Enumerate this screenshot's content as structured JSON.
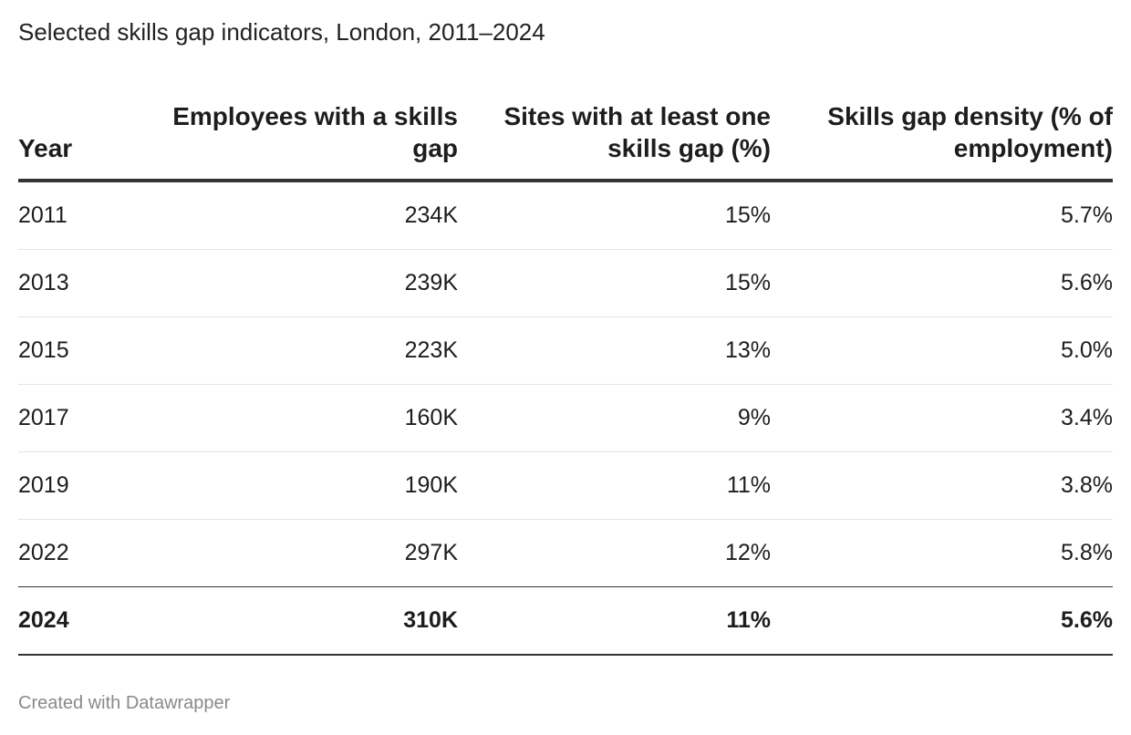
{
  "chart_data": {
    "type": "table",
    "title": "Selected skills gap indicators, London, 2011–2024",
    "columns": [
      "Year",
      "Employees with a skills gap",
      "Sites with at least one skills gap (%)",
      "Skills gap density (% of employment)"
    ],
    "rows": [
      [
        "2011",
        "234K",
        "15%",
        "5.7%"
      ],
      [
        "2013",
        "239K",
        "15%",
        "5.6%"
      ],
      [
        "2015",
        "223K",
        "13%",
        "5.0%"
      ],
      [
        "2017",
        "160K",
        "9%",
        "3.4%"
      ],
      [
        "2019",
        "190K",
        "11%",
        "3.8%"
      ],
      [
        "2022",
        "297K",
        "12%",
        "5.8%"
      ],
      [
        "2024",
        "310K",
        "11%",
        "5.6%"
      ]
    ],
    "highlighted_row": "2024"
  },
  "footer": {
    "credit": "Created with Datawrapper"
  }
}
